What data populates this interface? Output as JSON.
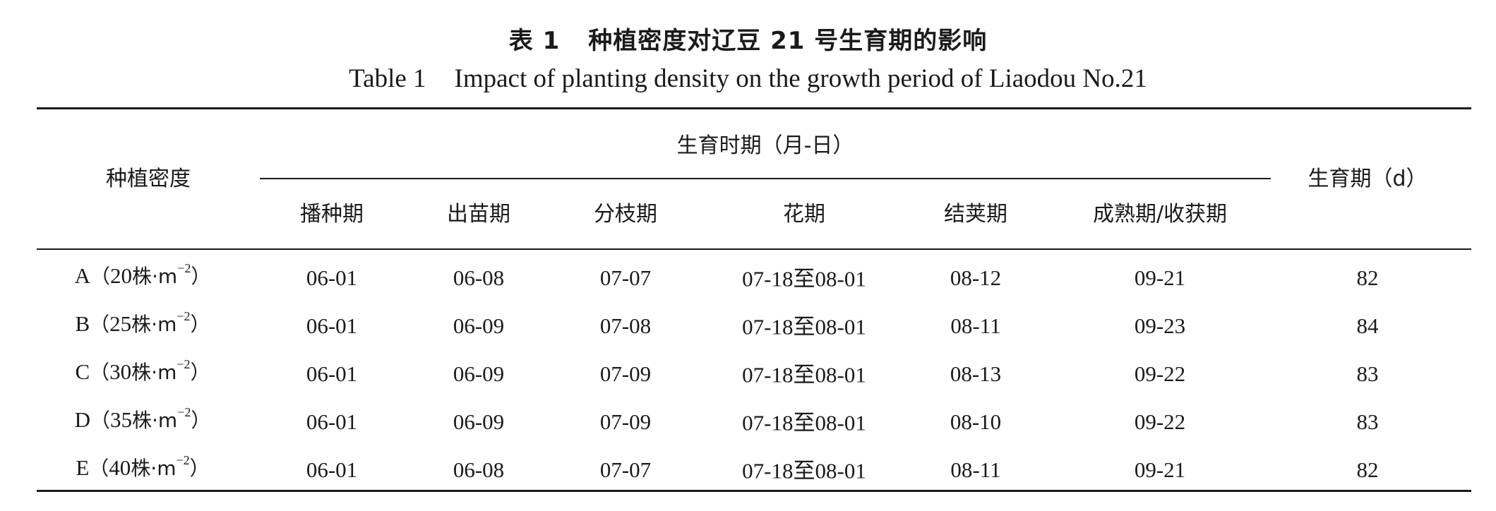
{
  "caption": {
    "cn_label": "表 1",
    "cn_title": "种植密度对辽豆 21 号生育期的影响",
    "en_label": "Table 1",
    "en_title": "Impact of planting density on the growth period of Liaodou No.21"
  },
  "table": {
    "col_density": "种植密度",
    "group_header": "生育时期（月-日）",
    "col_days": "生育期（d）",
    "stage_headers": [
      "播种期",
      "出苗期",
      "分枝期",
      "花期",
      "结荚期",
      "成熟期/收获期"
    ],
    "rows": [
      {
        "letter": "A",
        "density": "20",
        "unit": "株·m",
        "exp": "−2",
        "sowing": "06-01",
        "emergence": "06-08",
        "branching": "07-07",
        "flowering": "07-18至08-01",
        "podding": "08-12",
        "maturity": "09-21",
        "days": "82"
      },
      {
        "letter": "B",
        "density": "25",
        "unit": "株·m",
        "exp": "−2",
        "sowing": "06-01",
        "emergence": "06-09",
        "branching": "07-08",
        "flowering": "07-18至08-01",
        "podding": "08-11",
        "maturity": "09-23",
        "days": "84"
      },
      {
        "letter": "C",
        "density": "30",
        "unit": "株·m",
        "exp": "−2",
        "sowing": "06-01",
        "emergence": "06-09",
        "branching": "07-09",
        "flowering": "07-18至08-01",
        "podding": "08-13",
        "maturity": "09-22",
        "days": "83"
      },
      {
        "letter": "D",
        "density": "35",
        "unit": "株·m",
        "exp": "−2",
        "sowing": "06-01",
        "emergence": "06-09",
        "branching": "07-09",
        "flowering": "07-18至08-01",
        "podding": "08-10",
        "maturity": "09-22",
        "days": "83"
      },
      {
        "letter": "E",
        "density": "40",
        "unit": "株·m",
        "exp": "−2",
        "sowing": "06-01",
        "emergence": "06-08",
        "branching": "07-07",
        "flowering": "07-18至08-01",
        "podding": "08-11",
        "maturity": "09-21",
        "days": "82"
      }
    ]
  }
}
